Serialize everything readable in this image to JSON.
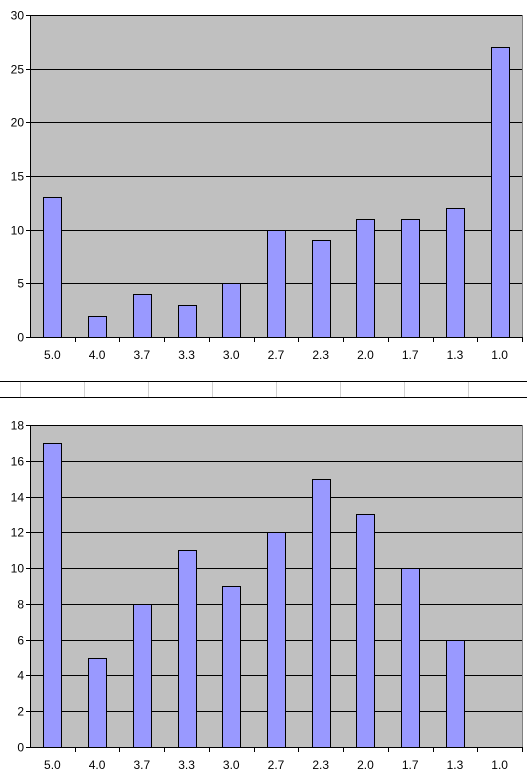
{
  "chart_data": [
    {
      "type": "bar",
      "categories": [
        "5.0",
        "4.0",
        "3.7",
        "3.3",
        "3.0",
        "2.7",
        "2.3",
        "2.0",
        "1.7",
        "1.3",
        "1.0"
      ],
      "values": [
        13,
        2,
        4,
        3,
        5,
        10,
        9,
        11,
        11,
        12,
        27
      ],
      "title": "",
      "xlabel": "",
      "ylabel": "",
      "ylim": [
        0,
        30
      ],
      "yticks": [
        "0",
        "5",
        "10",
        "15",
        "20",
        "25",
        "30"
      ],
      "grid": true,
      "legend": "none",
      "colors": {
        "bar": "#9999ff",
        "plot_bg": "#c0c0c0"
      }
    },
    {
      "type": "bar",
      "categories": [
        "5.0",
        "4.0",
        "3.7",
        "3.3",
        "3.0",
        "2.7",
        "2.3",
        "2.0",
        "1.7",
        "1.3",
        "1.0"
      ],
      "values": [
        17,
        5,
        8,
        11,
        9,
        12,
        15,
        13,
        10,
        6,
        0
      ],
      "title": "",
      "xlabel": "",
      "ylabel": "",
      "ylim": [
        0,
        18
      ],
      "yticks": [
        "0",
        "2",
        "4",
        "6",
        "8",
        "10",
        "12",
        "14",
        "16",
        "18"
      ],
      "grid": true,
      "legend": "none",
      "colors": {
        "bar": "#9999ff",
        "plot_bg": "#c0c0c0"
      }
    }
  ]
}
